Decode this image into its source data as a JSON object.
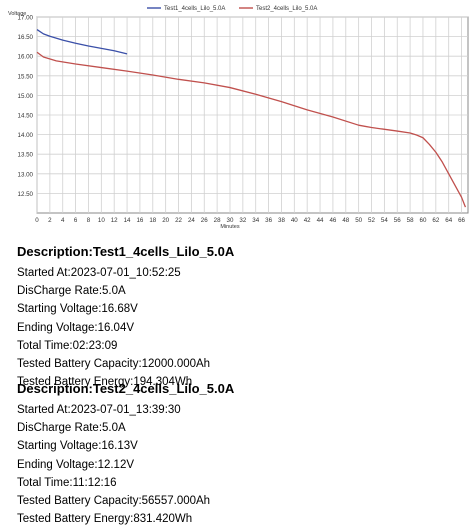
{
  "chart_data": {
    "type": "line",
    "ylabel": "Voltage",
    "xlabel": "Minutes",
    "ylim": [
      12.0,
      17.0
    ],
    "xlim": [
      0,
      67
    ],
    "grid": true,
    "legend_position": "top-center",
    "yticks": [
      "12.50",
      "13.00",
      "13.50",
      "14.00",
      "14.50",
      "15.00",
      "15.50",
      "16.00",
      "16.50",
      "17.00"
    ],
    "xticks": [
      "0",
      "2",
      "4",
      "6",
      "8",
      "10",
      "12",
      "14",
      "16",
      "18",
      "20",
      "22",
      "24",
      "26",
      "28",
      "30",
      "32",
      "34",
      "36",
      "38",
      "40",
      "42",
      "44",
      "46",
      "48",
      "50",
      "52",
      "54",
      "56",
      "58",
      "60",
      "62",
      "64",
      "66"
    ],
    "series": [
      {
        "name": "Test1_4cells_Lilo_5.0A",
        "color": "#3a4fa8",
        "points": [
          [
            0,
            16.68
          ],
          [
            1,
            16.57
          ],
          [
            2,
            16.51
          ],
          [
            4,
            16.41
          ],
          [
            6,
            16.33
          ],
          [
            8,
            16.26
          ],
          [
            10,
            16.2
          ],
          [
            12,
            16.14
          ],
          [
            14,
            16.06
          ]
        ]
      },
      {
        "name": "Test2_4cells_Lilo_5.0A",
        "color": "#c0504d",
        "points": [
          [
            0,
            16.1
          ],
          [
            1,
            15.98
          ],
          [
            3,
            15.88
          ],
          [
            6,
            15.8
          ],
          [
            10,
            15.71
          ],
          [
            14,
            15.62
          ],
          [
            18,
            15.52
          ],
          [
            22,
            15.41
          ],
          [
            26,
            15.32
          ],
          [
            30,
            15.2
          ],
          [
            34,
            15.03
          ],
          [
            38,
            14.84
          ],
          [
            42,
            14.63
          ],
          [
            46,
            14.45
          ],
          [
            50,
            14.24
          ],
          [
            52,
            14.18
          ],
          [
            56,
            14.09
          ],
          [
            58,
            14.04
          ],
          [
            59,
            13.99
          ],
          [
            60,
            13.92
          ],
          [
            61,
            13.75
          ],
          [
            62,
            13.55
          ],
          [
            63,
            13.3
          ],
          [
            64,
            13.0
          ],
          [
            65,
            12.7
          ],
          [
            66,
            12.4
          ],
          [
            66.6,
            12.15
          ]
        ]
      }
    ]
  },
  "tests": [
    {
      "description": "Description:Test1_4cells_Lilo_5.0A",
      "lines": [
        "Started At:2023-07-01_10:52:25",
        "DisCharge Rate:5.0A",
        "Starting Voltage:16.68V",
        "Ending Voltage:16.04V",
        "Total Time:02:23:09",
        "Tested Battery Capacity:12000.000Ah",
        "Tested Battery Energy:194.304Wh"
      ]
    },
    {
      "description": "Description:Test2_4cells_Lilo_5.0A",
      "lines": [
        "Started At:2023-07-01_13:39:30",
        "DisCharge Rate:5.0A",
        "Starting Voltage:16.13V",
        "Ending Voltage:12.12V",
        "Total Time:11:12:16",
        "Tested Battery Capacity:56557.000Ah",
        "Tested Battery Energy:831.420Wh"
      ]
    }
  ]
}
